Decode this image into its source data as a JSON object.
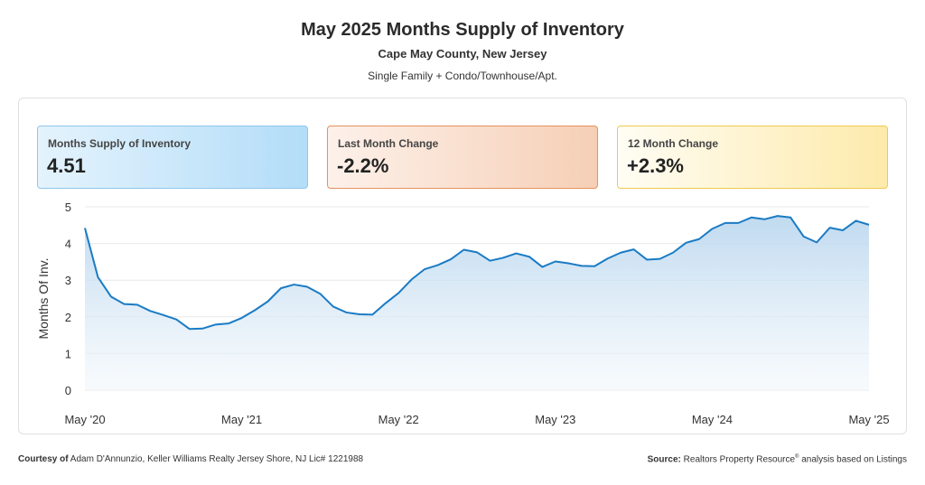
{
  "header": {
    "title": "May 2025 Months Supply of Inventory",
    "subtitle": "Cape May County, New Jersey",
    "subtitle2": "Single Family + Condo/Townhouse/Apt."
  },
  "kpis": [
    {
      "label": "Months Supply of Inventory",
      "value": "4.51"
    },
    {
      "label": "Last Month Change",
      "value": "-2.2%"
    },
    {
      "label": "12 Month Change",
      "value": "+2.3%"
    }
  ],
  "footer": {
    "courtesy_label": "Courtesy of",
    "courtesy_text": "Adam D'Annunzio, Keller Williams Realty Jersey Shore, NJ Lic# 1221988",
    "source_label": "Source:",
    "source_text_a": "Realtors Property Resource",
    "source_sup": "®",
    "source_text_b": " analysis based on Listings"
  },
  "colors": {
    "line": "#1a7bc4",
    "fill_top": "#b9d6ee",
    "fill_bottom": "#f3f8fc",
    "grid": "#e8e8e8"
  },
  "chart_data": {
    "type": "area",
    "ylabel": "Months Of Inv.",
    "xlabel": "",
    "ylim": [
      0,
      5
    ],
    "yticks": [
      0,
      1,
      2,
      3,
      4,
      5
    ],
    "grid": true,
    "x_tick_labels": [
      "May '20",
      "May '21",
      "May '22",
      "May '23",
      "May '24",
      "May '25"
    ],
    "x_tick_index": [
      0,
      12,
      24,
      36,
      48,
      60
    ],
    "series": [
      {
        "values": [
          4.42,
          3.08,
          2.55,
          2.35,
          2.33,
          2.16,
          2.05,
          1.93,
          1.67,
          1.68,
          1.79,
          1.82,
          1.97,
          2.18,
          2.42,
          2.78,
          2.88,
          2.82,
          2.63,
          2.28,
          2.12,
          2.07,
          2.06,
          2.37,
          2.65,
          3.02,
          3.3,
          3.41,
          3.57,
          3.83,
          3.76,
          3.53,
          3.61,
          3.73,
          3.64,
          3.36,
          3.51,
          3.46,
          3.39,
          3.38,
          3.59,
          3.75,
          3.84,
          3.56,
          3.58,
          3.75,
          4.02,
          4.12,
          4.4,
          4.56,
          4.56,
          4.71,
          4.66,
          4.75,
          4.71,
          4.19,
          4.03,
          4.43,
          4.36,
          4.62,
          4.51
        ]
      }
    ]
  }
}
